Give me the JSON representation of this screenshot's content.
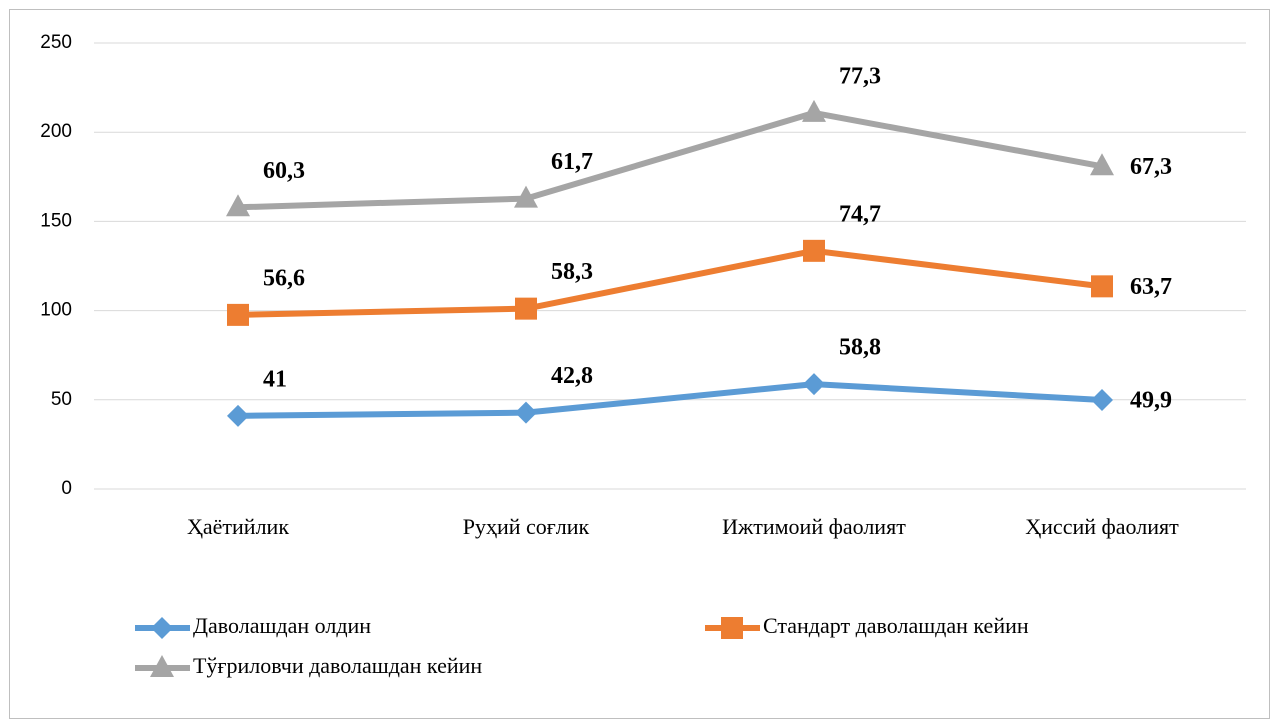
{
  "chart_data": {
    "type": "line",
    "stacked": true,
    "categories": [
      "Ҳаётийлик",
      "Руҳий соғлик",
      "Ижтимоий фаолият",
      "Ҳиссий фаолият"
    ],
    "series": [
      {
        "name": "Даволашдан олдин",
        "color": "#5b9bd5",
        "marker": "diamond",
        "values": [
          41,
          42.8,
          58.8,
          49.9
        ],
        "value_labels": [
          "41",
          "42,8",
          "58,8",
          "49,9"
        ]
      },
      {
        "name": "Стандарт даволашдан кейин",
        "color": "#ed7d31",
        "marker": "square",
        "values": [
          56.6,
          58.3,
          74.7,
          63.7
        ],
        "value_labels": [
          "56,6",
          "58,3",
          "74,7",
          "63,7"
        ]
      },
      {
        "name": "Тўғриловчи даволашдан кейин",
        "color": "#a5a5a5",
        "marker": "triangle",
        "values": [
          60.3,
          61.7,
          77.3,
          67.3
        ],
        "value_labels": [
          "60,3",
          "61,7",
          "77,3",
          "67,3"
        ]
      }
    ],
    "ylim": [
      0,
      250
    ],
    "yticks": [
      0,
      50,
      100,
      150,
      200,
      250
    ],
    "grid": true,
    "legend": "bottom"
  }
}
